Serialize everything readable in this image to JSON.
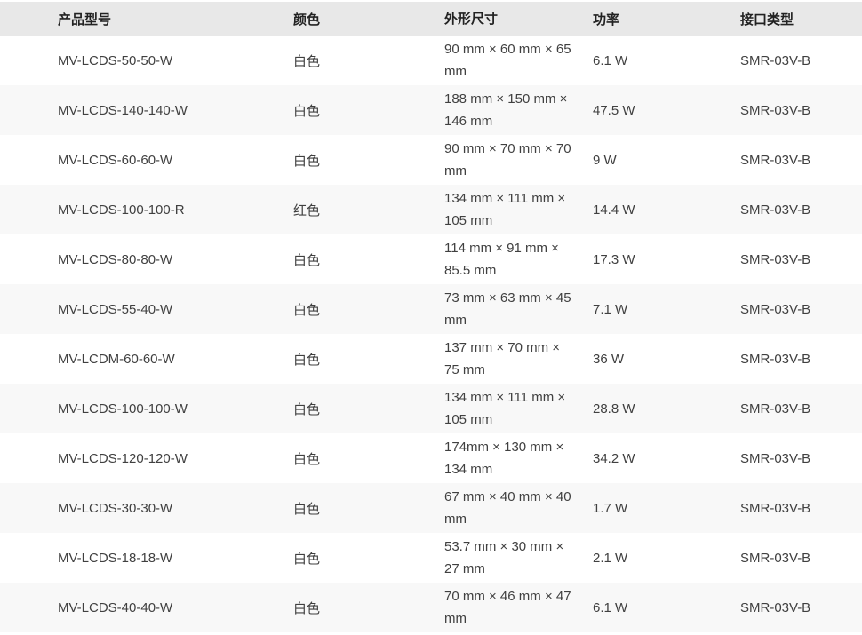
{
  "table": {
    "columns": [
      {
        "key": "model",
        "label": "产品型号"
      },
      {
        "key": "color",
        "label": "颜色"
      },
      {
        "key": "dimensions",
        "label": "外形尺寸"
      },
      {
        "key": "power",
        "label": "功率"
      },
      {
        "key": "interface",
        "label": "接口类型"
      }
    ],
    "rows": [
      {
        "model": "MV-LCDS-50-50-W",
        "color": "白色",
        "dimensions": "90 mm × 60 mm × 65 mm",
        "power": "6.1 W",
        "interface": "SMR-03V-B"
      },
      {
        "model": "MV-LCDS-140-140-W",
        "color": "白色",
        "dimensions": "188 mm × 150 mm × 146 mm",
        "power": "47.5 W",
        "interface": "SMR-03V-B"
      },
      {
        "model": "MV-LCDS-60-60-W",
        "color": "白色",
        "dimensions": "90 mm × 70 mm × 70 mm",
        "power": "9 W",
        "interface": "SMR-03V-B"
      },
      {
        "model": "MV-LCDS-100-100-R",
        "color": "红色",
        "dimensions": "134 mm × 111 mm × 105 mm",
        "power": "14.4 W",
        "interface": "SMR-03V-B"
      },
      {
        "model": "MV-LCDS-80-80-W",
        "color": "白色",
        "dimensions": "114 mm × 91 mm × 85.5 mm",
        "power": "17.3 W",
        "interface": "SMR-03V-B"
      },
      {
        "model": "MV-LCDS-55-40-W",
        "color": "白色",
        "dimensions": "73 mm × 63 mm × 45 mm",
        "power": "7.1 W",
        "interface": "SMR-03V-B"
      },
      {
        "model": "MV-LCDM-60-60-W",
        "color": "白色",
        "dimensions": "137 mm × 70 mm × 75 mm",
        "power": "36 W",
        "interface": "SMR-03V-B"
      },
      {
        "model": "MV-LCDS-100-100-W",
        "color": "白色",
        "dimensions": "134 mm × 111 mm × 105 mm",
        "power": "28.8 W",
        "interface": "SMR-03V-B"
      },
      {
        "model": "MV-LCDS-120-120-W",
        "color": "白色",
        "dimensions": "174mm × 130 mm × 134 mm",
        "power": "34.2 W",
        "interface": "SMR-03V-B"
      },
      {
        "model": "MV-LCDS-30-30-W",
        "color": "白色",
        "dimensions": "67 mm × 40 mm × 40 mm",
        "power": "1.7 W",
        "interface": "SMR-03V-B"
      },
      {
        "model": "MV-LCDS-18-18-W",
        "color": "白色",
        "dimensions": "53.7 mm × 30 mm × 27 mm",
        "power": "2.1 W",
        "interface": "SMR-03V-B"
      },
      {
        "model": "MV-LCDS-40-40-W",
        "color": "白色",
        "dimensions": "70 mm × 46 mm × 47 mm",
        "power": "6.1 W",
        "interface": "SMR-03V-B"
      }
    ]
  },
  "colors": {
    "header_bg": "#e8e8e8",
    "stripe_bg": "#f8f8f8",
    "body_text": "#404040",
    "header_text": "#222222",
    "page_bg": "#ffffff"
  }
}
